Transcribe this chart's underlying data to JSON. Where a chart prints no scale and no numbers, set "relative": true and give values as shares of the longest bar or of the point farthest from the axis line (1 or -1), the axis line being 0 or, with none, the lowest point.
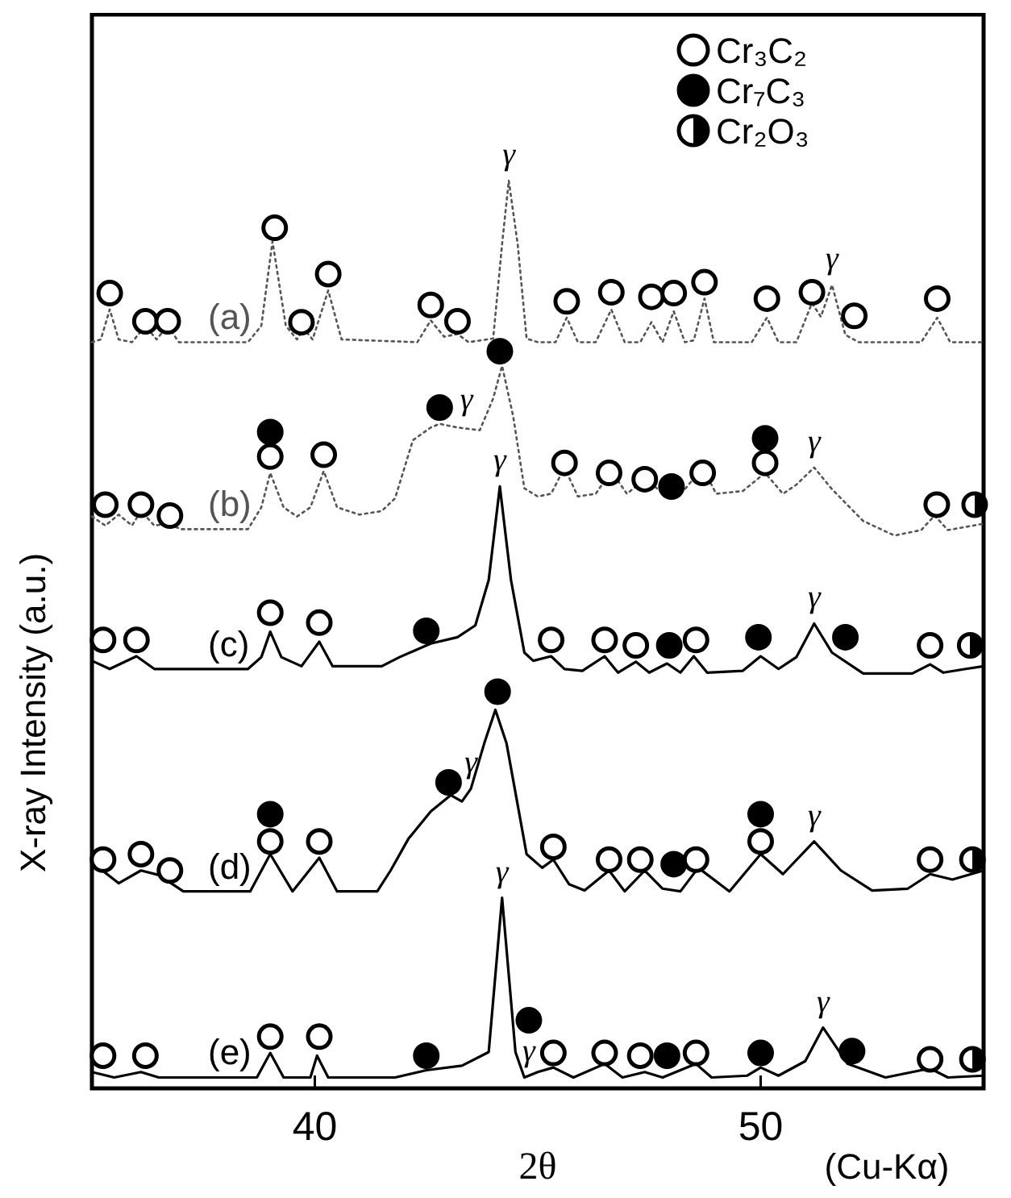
{
  "chart_data": {
    "type": "line",
    "xlabel": "2θ",
    "ylabel": "X-ray Intensity (a.u.)",
    "relative": true,
    "xlim": [
      35,
      55
    ],
    "xticks": [
      40,
      50
    ],
    "legend": "top right",
    "annotations": [
      {
        "text": "γ",
        "x": 44.35,
        "y": 1.0
      },
      {
        "text": "γ",
        "x": 51.6,
        "y": 0.885
      },
      {
        "text": "γ",
        "x": 43.4,
        "y": 0.73
      },
      {
        "text": "γ",
        "x": 51.2,
        "y": 0.684
      },
      {
        "text": "γ",
        "x": 44.15,
        "y": 0.663
      },
      {
        "text": "γ",
        "x": 51.2,
        "y": 0.512
      },
      {
        "text": "γ",
        "x": 43.5,
        "y": 0.33
      },
      {
        "text": "γ",
        "x": 51.2,
        "y": 0.272
      },
      {
        "text": "γ",
        "x": 44.2,
        "y": 0.21
      },
      {
        "text": "γ",
        "x": 44.8,
        "y": 0.012
      },
      {
        "text": "γ",
        "x": 51.4,
        "y": 0.067
      },
      "(Cu-Kα)"
    ],
    "series": [
      {
        "name": "(a)",
        "type": "line",
        "line_style": "dotted",
        "color": "#555555",
        "x": [
          35.0,
          35.2,
          35.4,
          35.6,
          35.9,
          36.2,
          36.45,
          36.7,
          36.95,
          38.5,
          38.8,
          39.05,
          39.35,
          39.6,
          39.75,
          39.95,
          40.3,
          40.6,
          42.3,
          42.6,
          42.9,
          43.2,
          43.45,
          44.0,
          44.2,
          44.35,
          44.55,
          44.75,
          45.0,
          45.4,
          45.65,
          45.9,
          46.3,
          46.65,
          46.95,
          47.3,
          47.55,
          47.8,
          48.05,
          48.3,
          48.5,
          48.74,
          48.95,
          49.8,
          50.14,
          50.4,
          50.8,
          51.15,
          51.35,
          51.6,
          51.9,
          52.2,
          53.6,
          53.96,
          54.25,
          55.0
        ],
        "values": [
          0.822,
          0.825,
          0.858,
          0.825,
          0.822,
          0.84,
          0.825,
          0.84,
          0.822,
          0.822,
          0.84,
          0.933,
          0.84,
          0.825,
          0.837,
          0.825,
          0.879,
          0.825,
          0.822,
          0.846,
          0.828,
          0.831,
          0.822,
          0.826,
          0.93,
          1.0,
          0.93,
          0.826,
          0.822,
          0.822,
          0.849,
          0.822,
          0.822,
          0.858,
          0.822,
          0.822,
          0.844,
          0.822,
          0.856,
          0.822,
          0.824,
          0.87,
          0.822,
          0.822,
          0.849,
          0.822,
          0.822,
          0.865,
          0.85,
          0.885,
          0.83,
          0.822,
          0.822,
          0.849,
          0.822,
          0.822
        ]
      },
      {
        "name": "(b)",
        "type": "line",
        "line_style": "dotted",
        "color": "#555555",
        "x": [
          35.0,
          35.3,
          35.6,
          35.9,
          36.1,
          36.4,
          36.7,
          37.0,
          38.5,
          38.8,
          39.0,
          39.3,
          39.6,
          39.9,
          40.2,
          40.5,
          41.0,
          41.5,
          41.8,
          42.2,
          42.6,
          42.8,
          43.2,
          43.7,
          44.0,
          44.2,
          44.45,
          44.7,
          45.0,
          45.3,
          45.6,
          45.9,
          46.3,
          46.65,
          47.0,
          47.4,
          47.7,
          48.0,
          48.3,
          48.7,
          49.0,
          49.6,
          50.1,
          50.5,
          50.8,
          51.2,
          51.6,
          52.3,
          53.0,
          53.6,
          53.9,
          54.2,
          55.0
        ],
        "values": [
          0.63,
          0.62,
          0.632,
          0.62,
          0.636,
          0.62,
          0.622,
          0.616,
          0.616,
          0.64,
          0.678,
          0.64,
          0.63,
          0.64,
          0.68,
          0.64,
          0.632,
          0.636,
          0.65,
          0.714,
          0.728,
          0.732,
          0.728,
          0.725,
          0.76,
          0.796,
          0.74,
          0.661,
          0.652,
          0.655,
          0.684,
          0.652,
          0.655,
          0.68,
          0.655,
          0.671,
          0.66,
          0.664,
          0.66,
          0.684,
          0.655,
          0.658,
          0.678,
          0.655,
          0.665,
          0.684,
          0.66,
          0.625,
          0.609,
          0.615,
          0.631,
          0.615,
          0.622
        ]
      },
      {
        "name": "(c)",
        "type": "line",
        "line_style": "solid",
        "color": "#000000",
        "x": [
          35.0,
          35.4,
          36.0,
          36.4,
          38.5,
          38.8,
          39.0,
          39.25,
          39.7,
          40.1,
          40.4,
          41.5,
          41.9,
          42.6,
          43.2,
          43.6,
          43.9,
          44.15,
          44.4,
          44.7,
          44.9,
          45.3,
          45.6,
          46.0,
          46.5,
          46.8,
          47.2,
          47.5,
          47.9,
          48.2,
          48.5,
          48.8,
          49.6,
          50.0,
          50.4,
          50.8,
          51.2,
          51.6,
          52.3,
          53.4,
          53.8,
          54.1,
          54.6,
          55.0
        ],
        "values": [
          0.471,
          0.462,
          0.476,
          0.462,
          0.462,
          0.475,
          0.503,
          0.475,
          0.465,
          0.492,
          0.465,
          0.465,
          0.475,
          0.49,
          0.497,
          0.51,
          0.56,
          0.663,
          0.56,
          0.48,
          0.471,
          0.476,
          0.462,
          0.46,
          0.476,
          0.458,
          0.47,
          0.458,
          0.468,
          0.458,
          0.476,
          0.458,
          0.46,
          0.476,
          0.462,
          0.475,
          0.512,
          0.48,
          0.457,
          0.457,
          0.467,
          0.458,
          0.462,
          0.465
        ]
      },
      {
        "name": "(d)",
        "type": "line",
        "line_style": "solid",
        "color": "#000000",
        "x": [
          35.0,
          35.6,
          36.1,
          36.5,
          37.05,
          38.55,
          39.0,
          39.5,
          40.1,
          40.5,
          41.4,
          41.7,
          42.1,
          42.6,
          43.05,
          43.3,
          43.5,
          43.8,
          44.05,
          44.3,
          44.75,
          45.1,
          45.35,
          45.7,
          46.05,
          46.6,
          46.95,
          47.4,
          47.8,
          48.2,
          48.6,
          49.3,
          50.0,
          50.5,
          51.2,
          51.8,
          52.5,
          53.3,
          53.8,
          54.3,
          55.0
        ],
        "values": [
          0.249,
          0.226,
          0.24,
          0.235,
          0.217,
          0.217,
          0.258,
          0.217,
          0.254,
          0.217,
          0.217,
          0.24,
          0.275,
          0.305,
          0.323,
          0.316,
          0.33,
          0.38,
          0.417,
          0.38,
          0.258,
          0.243,
          0.252,
          0.225,
          0.218,
          0.24,
          0.217,
          0.24,
          0.22,
          0.217,
          0.243,
          0.217,
          0.258,
          0.236,
          0.272,
          0.24,
          0.218,
          0.22,
          0.236,
          0.23,
          0.24
        ]
      },
      {
        "name": "(e)",
        "type": "line",
        "line_style": "solid",
        "color": "#000000",
        "x": [
          35.0,
          35.5,
          36.1,
          36.5,
          38.7,
          39.0,
          39.3,
          39.9,
          40.05,
          40.3,
          41.8,
          42.5,
          43.3,
          43.9,
          44.2,
          44.5,
          44.7,
          45.0,
          45.35,
          45.8,
          46.5,
          46.9,
          47.4,
          47.8,
          48.55,
          48.9,
          49.7,
          50.0,
          50.4,
          51.0,
          51.4,
          51.95,
          52.8,
          53.8,
          54.2,
          55.0
        ],
        "values": [
          0.018,
          0.012,
          0.018,
          0.012,
          0.012,
          0.039,
          0.012,
          0.012,
          0.036,
          0.012,
          0.012,
          0.02,
          0.025,
          0.04,
          0.21,
          0.04,
          0.012,
          0.018,
          0.023,
          0.012,
          0.027,
          0.012,
          0.018,
          0.012,
          0.027,
          0.012,
          0.014,
          0.023,
          0.014,
          0.03,
          0.067,
          0.027,
          0.012,
          0.022,
          0.012,
          0.014
        ]
      },
      {
        "name": "Cr₃C₂",
        "type": "scatter",
        "marker": "circle",
        "color": "#ffffff",
        "x": [
          35.4,
          36.2,
          36.7,
          39.1,
          39.7,
          40.3,
          42.6,
          43.2,
          45.65,
          46.65,
          47.55,
          48.05,
          48.74,
          50.14,
          51.15,
          52.1,
          53.96,
          35.3,
          36.1,
          36.75,
          39.0,
          40.2,
          45.6,
          46.6,
          47.4,
          48.7,
          50.1,
          53.95,
          35.25,
          36.0,
          39.0,
          40.1,
          45.3,
          46.5,
          47.2,
          48.55,
          53.8,
          35.25,
          36.1,
          36.75,
          39.0,
          40.1,
          45.35,
          46.6,
          47.3,
          48.55,
          50.0,
          53.8,
          35.25,
          36.2,
          39.0,
          40.1,
          45.35,
          46.5,
          47.3,
          48.55,
          53.8
        ],
        "values": [
          0.876,
          0.845,
          0.845,
          0.948,
          0.844,
          0.897,
          0.863,
          0.845,
          0.867,
          0.877,
          0.872,
          0.876,
          0.888,
          0.87,
          0.877,
          0.851,
          0.87,
          0.643,
          0.643,
          0.631,
          0.696,
          0.698,
          0.689,
          0.678,
          0.671,
          0.678,
          0.689,
          0.643,
          0.494,
          0.494,
          0.524,
          0.513,
          0.494,
          0.494,
          0.488,
          0.494,
          0.488,
          0.252,
          0.258,
          0.24,
          0.272,
          0.272,
          0.266,
          0.252,
          0.252,
          0.252,
          0.272,
          0.252,
          0.036,
          0.036,
          0.057,
          0.057,
          0.039,
          0.039,
          0.036,
          0.039,
          0.032
        ]
      },
      {
        "name": "Cr₇C₃",
        "type": "scatter",
        "marker": "circle",
        "color": "#000000",
        "x": [
          39.0,
          42.8,
          44.15,
          48.0,
          50.1,
          42.5,
          47.95,
          49.95,
          51.9,
          39.0,
          43.0,
          44.1,
          48.05,
          50.0,
          42.5,
          44.8,
          47.9,
          50.0,
          52.05
        ],
        "values": [
          0.723,
          0.75,
          0.812,
          0.663,
          0.716,
          0.504,
          0.488,
          0.497,
          0.497,
          0.302,
          0.337,
          0.437,
          0.247,
          0.302,
          0.036,
          0.075,
          0.036,
          0.039,
          0.041
        ]
      },
      {
        "name": "Cr₂O₃",
        "type": "scatter",
        "marker": "circle",
        "color": "#000000",
        "x": [
          54.8,
          54.7,
          54.75,
          54.75
        ],
        "values": [
          0.643,
          0.488,
          0.252,
          0.032
        ]
      }
    ]
  }
}
